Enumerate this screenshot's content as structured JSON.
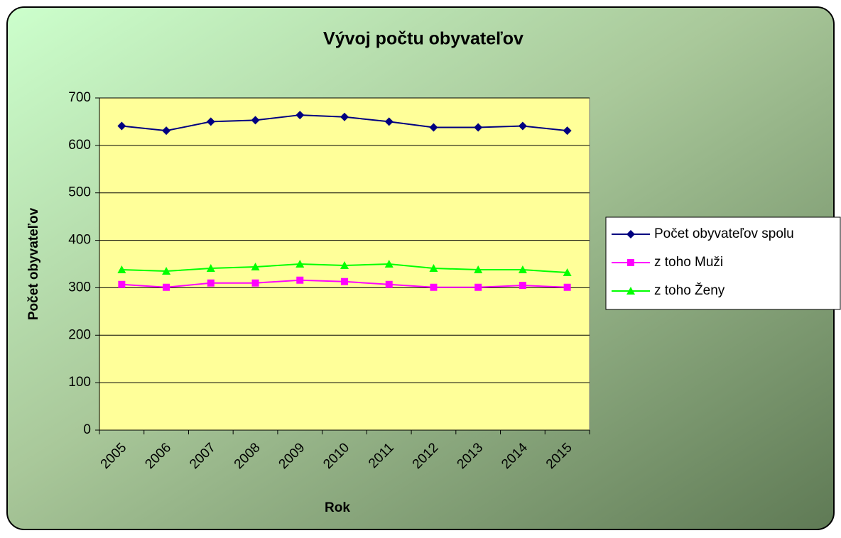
{
  "chart_data": {
    "type": "line",
    "title": "Vývoj počtu obyvateľov",
    "x_label": "Rok",
    "y_label": "Počet obyvateľov",
    "categories": [
      "2005",
      "2006",
      "2007",
      "2008",
      "2009",
      "2010",
      "2011",
      "2012",
      "2013",
      "2014",
      "2015"
    ],
    "series": [
      {
        "name": "Počet obyvateľov spolu",
        "color": "#000080",
        "marker": "diamond",
        "values": [
          641,
          631,
          650,
          653,
          664,
          660,
          650,
          638,
          638,
          641,
          631
        ]
      },
      {
        "name": "z toho Muži",
        "color": "#ff00ff",
        "marker": "square",
        "values": [
          307,
          301,
          310,
          310,
          316,
          313,
          307,
          301,
          301,
          305,
          301
        ]
      },
      {
        "name": "z toho Ženy",
        "color": "#00ff00",
        "marker": "triangle",
        "values": [
          338,
          335,
          341,
          344,
          350,
          347,
          350,
          341,
          338,
          338,
          332
        ]
      }
    ],
    "ylim": [
      0,
      700
    ],
    "yticks": [
      0,
      100,
      200,
      300,
      400,
      500,
      600,
      700
    ],
    "grid": true,
    "legend": "right"
  }
}
